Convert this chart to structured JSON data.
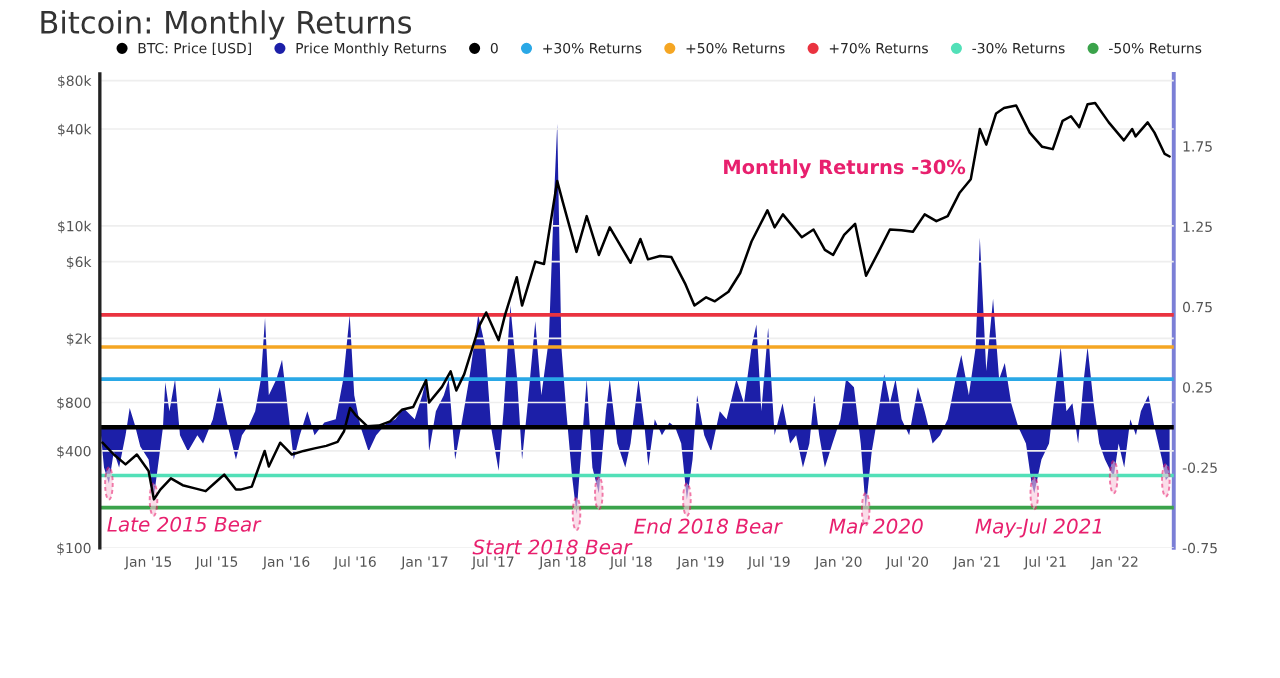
{
  "chart_data": {
    "type": "line",
    "title": "Bitcoin: Monthly Returns",
    "xlim": [
      "2014-08-25",
      "2022-06-05"
    ],
    "xticks": [
      {
        "value": "2015-01-01",
        "label": "Jan '15"
      },
      {
        "value": "2015-07-01",
        "label": "Jul '15"
      },
      {
        "value": "2016-01-01",
        "label": "Jan '16"
      },
      {
        "value": "2016-07-01",
        "label": "Jul '16"
      },
      {
        "value": "2017-01-01",
        "label": "Jan '17"
      },
      {
        "value": "2017-07-01",
        "label": "Jul '17"
      },
      {
        "value": "2018-01-01",
        "label": "Jan '18"
      },
      {
        "value": "2018-07-01",
        "label": "Jul '18"
      },
      {
        "value": "2019-01-01",
        "label": "Jan '19"
      },
      {
        "value": "2019-07-01",
        "label": "Jul '19"
      },
      {
        "value": "2020-01-01",
        "label": "Jan '20"
      },
      {
        "value": "2020-07-01",
        "label": "Jul '20"
      },
      {
        "value": "2021-01-01",
        "label": "Jan '21"
      },
      {
        "value": "2021-07-01",
        "label": "Jul '21"
      },
      {
        "value": "2022-01-01",
        "label": "Jan '22"
      }
    ],
    "log": "y",
    "ylim": [
      100,
      88000
    ],
    "yticks": [
      {
        "value": 100,
        "label": "$100"
      },
      {
        "value": 400,
        "label": "$400"
      },
      {
        "value": 800,
        "label": "$800"
      },
      {
        "value": 2000,
        "label": "$2k"
      },
      {
        "value": 6000,
        "label": "$6k"
      },
      {
        "value": 10000,
        "label": "$10k"
      },
      {
        "value": 40000,
        "label": "$40k"
      },
      {
        "value": 80000,
        "label": "$80k"
      }
    ],
    "y2lim": [
      -0.75,
      2.2
    ],
    "y2ticks": [
      -0.75,
      -0.25,
      0.25,
      0.75,
      1.25,
      1.75
    ],
    "grid": "y",
    "legend": "top left",
    "series": [
      {
        "name": "BTC: Price [USD]",
        "color": "#000000",
        "x": [
          "2014-09-01",
          "2014-10-01",
          "2014-11-01",
          "2014-12-01",
          "2015-01-01",
          "2015-01-15",
          "2015-02-01",
          "2015-03-01",
          "2015-04-01",
          "2015-05-01",
          "2015-06-01",
          "2015-07-01",
          "2015-07-20",
          "2015-08-20",
          "2015-09-01",
          "2015-10-01",
          "2015-11-04",
          "2015-11-15",
          "2015-12-15",
          "2016-01-15",
          "2016-02-15",
          "2016-03-15",
          "2016-04-15",
          "2016-05-15",
          "2016-06-01",
          "2016-06-17",
          "2016-07-01",
          "2016-08-01",
          "2016-09-01",
          "2016-10-01",
          "2016-11-01",
          "2016-12-01",
          "2017-01-04",
          "2017-01-12",
          "2017-02-15",
          "2017-03-10",
          "2017-03-25",
          "2017-04-15",
          "2017-05-25",
          "2017-06-12",
          "2017-07-15",
          "2017-08-01",
          "2017-09-01",
          "2017-09-15",
          "2017-10-20",
          "2017-11-12",
          "2017-12-17",
          "2018-01-01",
          "2018-02-06",
          "2018-03-05",
          "2018-04-06",
          "2018-05-05",
          "2018-06-29",
          "2018-07-25",
          "2018-08-14",
          "2018-09-15",
          "2018-10-15",
          "2018-11-20",
          "2018-12-15",
          "2019-01-15",
          "2019-02-07",
          "2019-03-15",
          "2019-04-15",
          "2019-05-15",
          "2019-06-26",
          "2019-07-15",
          "2019-08-06",
          "2019-09-25",
          "2019-10-26",
          "2019-11-25",
          "2019-12-17",
          "2020-01-15",
          "2020-02-13",
          "2020-03-13",
          "2020-04-15",
          "2020-05-15",
          "2020-06-15",
          "2020-07-15",
          "2020-08-15",
          "2020-09-15",
          "2020-10-15",
          "2020-11-15",
          "2020-12-15",
          "2021-01-08",
          "2021-01-25",
          "2021-02-20",
          "2021-03-13",
          "2021-04-14",
          "2021-05-20",
          "2021-06-22",
          "2021-07-20",
          "2021-08-15",
          "2021-09-06",
          "2021-09-28",
          "2021-10-20",
          "2021-11-09",
          "2021-12-15",
          "2022-01-24",
          "2022-02-15",
          "2022-02-24",
          "2022-03-28",
          "2022-04-15",
          "2022-05-12",
          "2022-05-25"
        ],
        "values": [
          450,
          380,
          330,
          380,
          300,
          200,
          230,
          270,
          245,
          235,
          225,
          260,
          285,
          230,
          230,
          240,
          400,
          320,
          450,
          380,
          400,
          415,
          430,
          455,
          530,
          740,
          670,
          570,
          575,
          610,
          720,
          750,
          1100,
          800,
          1000,
          1250,
          950,
          1200,
          2400,
          2900,
          1950,
          2800,
          4800,
          3200,
          6000,
          5800,
          19000,
          14000,
          6900,
          11500,
          6600,
          9800,
          5900,
          8300,
          6200,
          6500,
          6400,
          4400,
          3200,
          3600,
          3400,
          3900,
          5100,
          8000,
          12500,
          9800,
          11800,
          8500,
          9500,
          7100,
          6600,
          8800,
          10300,
          4900,
          6900,
          9500,
          9400,
          9200,
          11800,
          10700,
          11500,
          16000,
          19500,
          40000,
          32000,
          50000,
          54000,
          56000,
          38000,
          31000,
          30000,
          45000,
          48000,
          41000,
          57000,
          58000,
          44000,
          34000,
          40000,
          36000,
          44000,
          38000,
          28000,
          27000
        ]
      },
      {
        "name": "Price Monthly Returns",
        "type": "area",
        "axis": "y2",
        "color": "#1c1fa8",
        "x": [
          "2014-08-28",
          "2014-09-05",
          "2014-09-18",
          "2014-10-01",
          "2014-10-15",
          "2014-11-01",
          "2014-11-12",
          "2014-11-25",
          "2014-12-10",
          "2015-01-01",
          "2015-01-14",
          "2015-01-28",
          "2015-02-08",
          "2015-02-14",
          "2015-02-25",
          "2015-03-12",
          "2015-03-25",
          "2015-04-15",
          "2015-05-10",
          "2015-05-25",
          "2015-06-20",
          "2015-07-08",
          "2015-07-25",
          "2015-08-20",
          "2015-09-05",
          "2015-09-25",
          "2015-10-10",
          "2015-10-25",
          "2015-11-05",
          "2015-11-15",
          "2015-12-05",
          "2015-12-20",
          "2016-01-05",
          "2016-01-20",
          "2016-02-05",
          "2016-02-25",
          "2016-03-15",
          "2016-04-10",
          "2016-05-10",
          "2016-05-30",
          "2016-06-16",
          "2016-06-28",
          "2016-07-15",
          "2016-08-05",
          "2016-08-25",
          "2016-09-20",
          "2016-10-15",
          "2016-11-05",
          "2016-12-05",
          "2016-12-25",
          "2017-01-04",
          "2017-01-12",
          "2017-01-30",
          "2017-02-20",
          "2017-03-05",
          "2017-03-22",
          "2017-04-10",
          "2017-04-28",
          "2017-05-22",
          "2017-06-10",
          "2017-06-25",
          "2017-07-15",
          "2017-07-28",
          "2017-08-15",
          "2017-09-02",
          "2017-09-15",
          "2017-09-28",
          "2017-10-20",
          "2017-11-05",
          "2017-11-25",
          "2017-12-08",
          "2017-12-17",
          "2017-12-28",
          "2018-01-10",
          "2018-01-25",
          "2018-02-06",
          "2018-02-20",
          "2018-03-05",
          "2018-03-20",
          "2018-04-06",
          "2018-04-25",
          "2018-05-05",
          "2018-05-25",
          "2018-06-15",
          "2018-06-29",
          "2018-07-20",
          "2018-08-05",
          "2018-08-15",
          "2018-09-01",
          "2018-09-20",
          "2018-10-10",
          "2018-10-25",
          "2018-11-10",
          "2018-11-25",
          "2018-12-10",
          "2018-12-22",
          "2019-01-10",
          "2019-01-28",
          "2019-02-20",
          "2019-03-10",
          "2019-04-05",
          "2019-04-25",
          "2019-05-15",
          "2019-05-28",
          "2019-06-10",
          "2019-06-28",
          "2019-07-15",
          "2019-08-05",
          "2019-08-25",
          "2019-09-10",
          "2019-09-28",
          "2019-10-15",
          "2019-10-28",
          "2019-11-10",
          "2019-11-25",
          "2019-12-15",
          "2020-01-05",
          "2020-01-20",
          "2020-02-10",
          "2020-02-28",
          "2020-03-12",
          "2020-03-28",
          "2020-04-15",
          "2020-04-30",
          "2020-05-15",
          "2020-05-30",
          "2020-06-15",
          "2020-07-05",
          "2020-07-28",
          "2020-08-15",
          "2020-09-05",
          "2020-09-25",
          "2020-10-15",
          "2020-11-05",
          "2020-11-20",
          "2020-12-10",
          "2020-12-28",
          "2021-01-08",
          "2021-01-25",
          "2021-02-12",
          "2021-02-28",
          "2021-03-15",
          "2021-04-01",
          "2021-04-20",
          "2021-05-10",
          "2021-05-25",
          "2021-06-01",
          "2021-06-20",
          "2021-07-10",
          "2021-07-25",
          "2021-08-10",
          "2021-08-25",
          "2021-09-10",
          "2021-09-25",
          "2021-10-10",
          "2021-10-20",
          "2021-11-05",
          "2021-11-20",
          "2021-12-05",
          "2021-12-28",
          "2022-01-10",
          "2022-01-25",
          "2022-02-10",
          "2022-02-25",
          "2022-03-10",
          "2022-03-30",
          "2022-04-15",
          "2022-05-05",
          "2022-05-15",
          "2022-05-25"
        ],
        "values": [
          -0.05,
          -0.25,
          -0.35,
          -0.15,
          -0.25,
          -0.05,
          0.12,
          0.02,
          -0.12,
          -0.2,
          -0.45,
          -0.2,
          0.0,
          0.28,
          0.1,
          0.3,
          -0.05,
          -0.15,
          -0.05,
          -0.1,
          0.05,
          0.25,
          0.05,
          -0.2,
          -0.05,
          0.02,
          0.1,
          0.3,
          0.68,
          0.2,
          0.3,
          0.42,
          0.1,
          -0.2,
          -0.05,
          0.1,
          -0.05,
          0.03,
          0.05,
          0.3,
          0.7,
          0.2,
          0.0,
          -0.15,
          -0.05,
          0.02,
          0.05,
          0.12,
          0.05,
          0.2,
          0.3,
          -0.15,
          0.1,
          0.2,
          0.3,
          -0.2,
          0.05,
          0.3,
          0.7,
          0.5,
          0.0,
          -0.27,
          0.1,
          0.76,
          0.3,
          -0.2,
          0.1,
          0.66,
          0.2,
          0.55,
          1.4,
          1.89,
          0.5,
          0.1,
          -0.3,
          -0.54,
          -0.1,
          0.3,
          -0.25,
          -0.41,
          0.1,
          0.3,
          -0.1,
          -0.25,
          -0.1,
          0.3,
          0.0,
          -0.24,
          0.05,
          -0.05,
          0.03,
          0.0,
          -0.1,
          -0.45,
          -0.2,
          0.2,
          -0.05,
          -0.15,
          0.1,
          0.05,
          0.3,
          0.15,
          0.5,
          0.64,
          0.1,
          0.62,
          -0.05,
          0.15,
          -0.1,
          -0.05,
          -0.25,
          -0.1,
          0.2,
          -0.05,
          -0.25,
          -0.1,
          0.05,
          0.3,
          0.25,
          -0.1,
          -0.51,
          -0.15,
          0.1,
          0.33,
          0.15,
          0.3,
          0.05,
          -0.05,
          0.25,
          0.1,
          -0.1,
          -0.05,
          0.05,
          0.3,
          0.45,
          0.2,
          0.5,
          1.18,
          0.35,
          0.8,
          0.3,
          0.4,
          0.15,
          0.0,
          -0.1,
          -0.35,
          -0.41,
          -0.2,
          -0.1,
          0.2,
          0.5,
          0.1,
          0.15,
          -0.1,
          0.3,
          0.5,
          0.15,
          -0.1,
          -0.2,
          -0.31,
          -0.1,
          -0.25,
          0.05,
          -0.05,
          0.1,
          0.2,
          0.0,
          -0.2,
          -0.33,
          -0.3
        ]
      }
    ],
    "ref_lines": [
      {
        "axis": "y2",
        "value": 0,
        "label": "0",
        "color": "#000000"
      },
      {
        "axis": "y2",
        "value": 0.3,
        "label": "+30% Returns",
        "color": "#2aa8e6"
      },
      {
        "axis": "y2",
        "value": 0.5,
        "label": "+50% Returns",
        "color": "#f5a623"
      },
      {
        "axis": "y2",
        "value": 0.7,
        "label": "+70% Returns",
        "color": "#ea3340"
      },
      {
        "axis": "y2",
        "value": -0.3,
        "label": "-30% Returns",
        "color": "#52e0b8"
      },
      {
        "axis": "y2",
        "value": -0.5,
        "label": "-50% Returns",
        "color": "#3ba34b"
      }
    ],
    "annotations": [
      "Late 2015 Bear",
      "Start 2018 Bear",
      "End 2018 Bear",
      "Mar 2020",
      "May-Jul 2021",
      "Monthly Returns -30%"
    ]
  }
}
